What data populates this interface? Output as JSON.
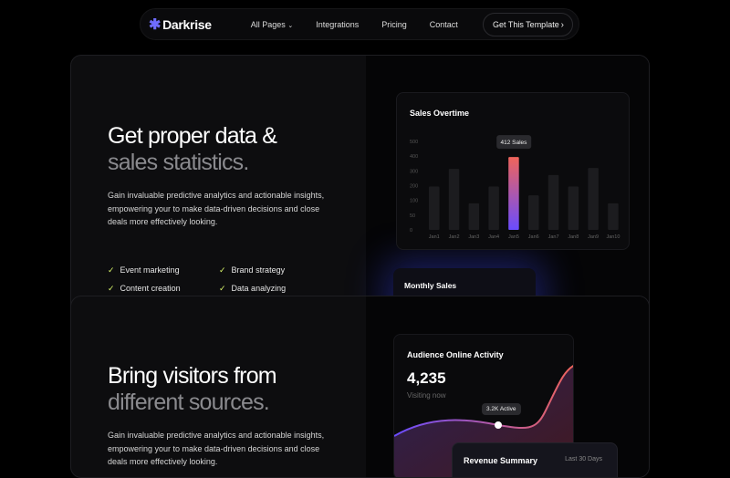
{
  "nav": {
    "brand": "Darkrise",
    "links": [
      "All Pages",
      "Integrations",
      "Pricing",
      "Contact"
    ],
    "cta": "Get This Template"
  },
  "section1": {
    "title_line1": "Get proper data &",
    "title_line2": "sales statistics.",
    "description": "Gain invaluable predictive analytics and actionable insights, empowering your to make data-driven decisions and close deals more effectively looking.",
    "features": [
      "Event marketing",
      "Brand strategy",
      "Content creation",
      "Data analyzing"
    ]
  },
  "section2": {
    "title_line1": "Bring visitors from",
    "title_line2": "different sources.",
    "description": "Gain invaluable predictive analytics and actionable insights, empowering your to make data-driven decisions and close deals more effectively looking."
  },
  "monthly_sales": {
    "title": "Monthly Sales"
  },
  "audience": {
    "title": "Audience Online Activity",
    "value": "4,235",
    "subtitle": "Visiting now",
    "tooltip": "3.2K Active"
  },
  "revenue": {
    "title": "Revenue Summary",
    "range": "Last 30 Days"
  },
  "colors": {
    "accent": "#6f6cff",
    "bar_gradient_top": "#f0645a",
    "bar_gradient_bottom": "#6a4cff",
    "check": "#d8f56a"
  },
  "chart_data": {
    "type": "bar",
    "title": "Sales Overtime",
    "categories": [
      "Jan1",
      "Jan2",
      "Jan3",
      "Jan4",
      "Jan5",
      "Jan6",
      "Jan7",
      "Jan8",
      "Jan9",
      "Jan10"
    ],
    "values": [
      245,
      345,
      150,
      245,
      412,
      195,
      310,
      245,
      350,
      150
    ],
    "highlight_index": 4,
    "tooltip": "412 Sales",
    "yticks": [
      "0",
      "50",
      "100",
      "200",
      "300",
      "400",
      "500"
    ],
    "ylim": [
      0,
      500
    ]
  }
}
